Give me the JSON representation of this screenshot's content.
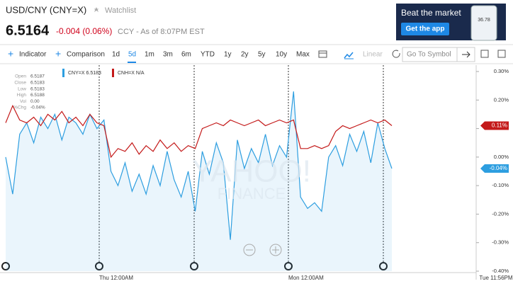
{
  "header": {
    "title": "USD/CNY (CNY=X)",
    "watchlist": "Watchlist",
    "price": "6.5164",
    "change": "-0.004 (0.06%)",
    "note": "CCY - As of 8:07PM EST"
  },
  "ad": {
    "headline": "Beat the market",
    "button": "Get the app",
    "phone_value": "36.78"
  },
  "toolbar": {
    "indicator": "Indicator",
    "comparison": "Comparison",
    "ranges": [
      "1d",
      "5d",
      "1m",
      "3m",
      "6m",
      "YTD",
      "1y",
      "2y",
      "5y",
      "10y",
      "Max"
    ],
    "active_range": "5d",
    "scale": "Linear",
    "search_placeholder": "Go To Symbol"
  },
  "quote_box": [
    {
      "label": "Open",
      "value": "6.5187"
    },
    {
      "label": "Close",
      "value": "6.5183"
    },
    {
      "label": "Low",
      "value": "6.5183"
    },
    {
      "label": "High",
      "value": "6.5188"
    },
    {
      "label": "Vol",
      "value": "0.00"
    },
    {
      "label": "%Chg",
      "value": "-0.04%"
    }
  ],
  "chart_data": {
    "type": "line",
    "ylim": [
      -0.4,
      0.3
    ],
    "yticks": [
      {
        "value": 0.3,
        "label": "0.30%"
      },
      {
        "value": 0.2,
        "label": "0.20%"
      },
      {
        "value": 0.1,
        "label": "0.10%"
      },
      {
        "value": 0,
        "label": "0.00%"
      },
      {
        "value": -0.1,
        "label": "-0.10%"
      },
      {
        "value": -0.2,
        "label": "-0.20%"
      },
      {
        "value": -0.3,
        "label": "-0.30%"
      },
      {
        "value": -0.4,
        "label": "-0.40%"
      }
    ],
    "x_labels": [
      "Thu 12:00AM",
      "Mon 12:00AM",
      "Tue 11:56PM"
    ],
    "series": [
      {
        "name": "CNY=X",
        "legend_value": "6.5183",
        "color": "#2d9ee0",
        "area": true,
        "flag_label": "-0.04%",
        "values": [
          0.0,
          -0.13,
          0.08,
          0.12,
          0.05,
          0.14,
          0.1,
          0.15,
          0.06,
          0.14,
          0.12,
          0.08,
          0.15,
          0.1,
          0.13,
          -0.05,
          -0.1,
          -0.02,
          -0.12,
          -0.06,
          -0.13,
          -0.03,
          -0.1,
          0.02,
          -0.08,
          -0.14,
          -0.05,
          -0.19,
          0.02,
          -0.06,
          0.05,
          -0.02,
          -0.29,
          0.06,
          -0.04,
          0.03,
          -0.02,
          0.08,
          -0.03,
          0.04,
          0.0,
          0.23,
          -0.14,
          -0.18,
          -0.16,
          -0.19,
          0.0,
          0.04,
          -0.03,
          0.08,
          0.02,
          0.09,
          -0.02,
          0.12,
          0.03,
          -0.04
        ]
      },
      {
        "name": "CNH=X",
        "legend_value": "N/A",
        "color": "#c41a1a",
        "area": false,
        "flag_label": "0.11%",
        "values": [
          0.12,
          0.18,
          0.13,
          0.12,
          0.14,
          0.11,
          0.15,
          0.13,
          0.16,
          0.12,
          0.14,
          0.11,
          0.15,
          0.12,
          0.11,
          0.0,
          0.03,
          0.02,
          0.05,
          0.01,
          0.04,
          0.02,
          0.06,
          0.03,
          0.05,
          0.02,
          0.04,
          0.03,
          0.1,
          0.11,
          0.12,
          0.11,
          0.13,
          0.12,
          0.11,
          0.12,
          0.13,
          0.11,
          0.12,
          0.13,
          0.12,
          0.13,
          0.03,
          0.03,
          0.04,
          0.03,
          0.04,
          0.09,
          0.11,
          0.1,
          0.11,
          0.12,
          0.13,
          0.12,
          0.13,
          0.11
        ]
      }
    ]
  }
}
